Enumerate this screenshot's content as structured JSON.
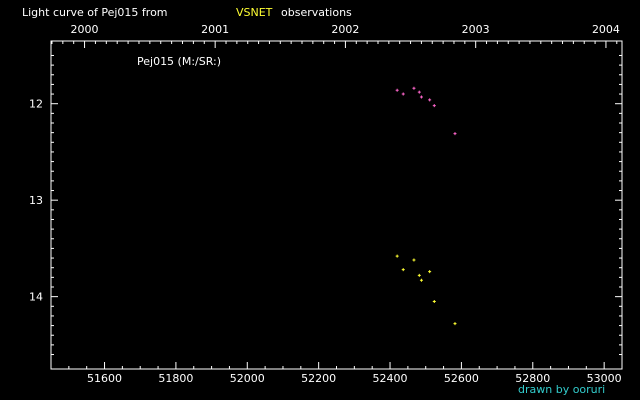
{
  "title_parts": {
    "prefix": "Light curve of Pej015 from",
    "source": "VSNET",
    "suffix": "observations"
  },
  "credit": "drawn by ooruri",
  "colors": {
    "background": "#000000",
    "axes": "#ffffff",
    "source_highlight": "#ffff33",
    "credit": "#33cccc",
    "series_upper": "#ff66cc",
    "series_lower": "#ffff33"
  },
  "chart_data": {
    "type": "scatter",
    "xlabel": "",
    "ylabel": "",
    "annotation": "Pej015 (M:/SR:)",
    "xlim": [
      51450,
      53050
    ],
    "ylim": [
      14.75,
      11.35
    ],
    "y_inverted": true,
    "x_ticks": [
      51600,
      51800,
      52000,
      52200,
      52400,
      52600,
      52800,
      53000
    ],
    "y_ticks": [
      12,
      13,
      14
    ],
    "top_axis": {
      "labels": [
        "2000",
        "2001",
        "2002",
        "2003",
        "2004"
      ],
      "mjd": [
        51544,
        51910,
        52275,
        52640,
        53005
      ]
    },
    "series": [
      {
        "color": "#ff66cc",
        "x": [
          52420,
          52437,
          52467,
          52482,
          52488,
          52511,
          52524,
          52582
        ],
        "y": [
          11.86,
          11.9,
          11.84,
          11.88,
          11.93,
          11.96,
          12.02,
          12.31
        ]
      },
      {
        "color": "#ffff33",
        "x": [
          52420,
          52437,
          52467,
          52482,
          52488,
          52511,
          52524,
          52582
        ],
        "y": [
          13.58,
          13.72,
          13.62,
          13.78,
          13.83,
          13.74,
          14.05,
          14.28
        ]
      }
    ]
  }
}
